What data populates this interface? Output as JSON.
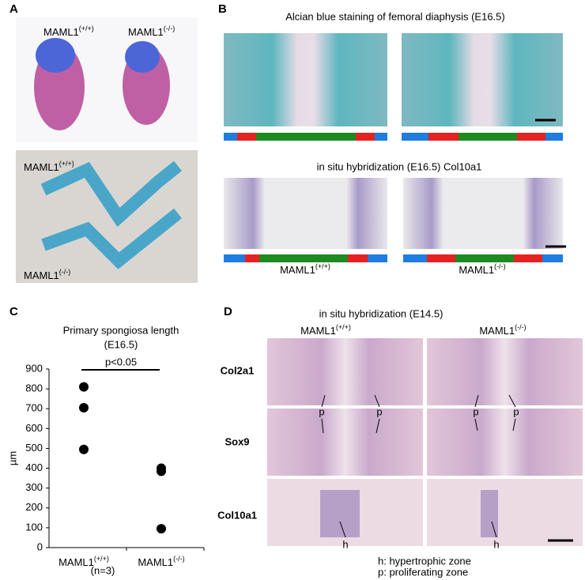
{
  "panels": {
    "a": {
      "label": "A",
      "top_labels": [
        {
          "name": "MAML1",
          "genotype": "(+/+)"
        },
        {
          "name": "MAML1",
          "genotype": "(-/-)"
        }
      ],
      "bottom_labels": [
        {
          "name": "MAML1",
          "genotype": "(+/+)"
        },
        {
          "name": "MAML1",
          "genotype": "(-/-)"
        }
      ]
    },
    "b": {
      "label": "B",
      "title_top": "Alcian blue staining of femoral diaphysis (E16.5)",
      "title_bottom": "in situ hybridization (E16.5) Col10a1",
      "labels": [
        {
          "name": "MAML1",
          "genotype": "(+/+)"
        },
        {
          "name": "MAML1",
          "genotype": "(-/-)"
        }
      ]
    },
    "c": {
      "label": "C"
    },
    "d": {
      "label": "D",
      "title": "in situ hybridization (E14.5)",
      "columns": [
        {
          "name": "MAML1",
          "genotype": "(+/+)"
        },
        {
          "name": "MAML1",
          "genotype": "(-/-)"
        }
      ],
      "rows": [
        "Col2a1",
        "Sox9",
        "Col10a1"
      ],
      "zone_labels": [
        "p",
        "p",
        "p",
        "p",
        "h",
        "h"
      ],
      "legend": [
        "h: hypertrophic zone",
        "p: proliferating zone"
      ]
    }
  },
  "chart_data": {
    "type": "scatter",
    "title": "Primary spongiosa length",
    "subtitle": "(E16.5)",
    "y_label": "µm",
    "annotation": "p<0.05",
    "note": "(n=3)",
    "categories": [
      {
        "name": "MAML1",
        "genotype": "(+/+)"
      },
      {
        "name": "MAML1",
        "genotype": "(-/-)"
      }
    ],
    "values": [
      [
        810,
        705,
        495
      ],
      [
        400,
        385,
        95
      ]
    ],
    "color": "#000000",
    "ylim": [
      0,
      900
    ],
    "yticks": [
      0,
      100,
      200,
      300,
      400,
      500,
      600,
      700,
      800,
      900
    ]
  }
}
